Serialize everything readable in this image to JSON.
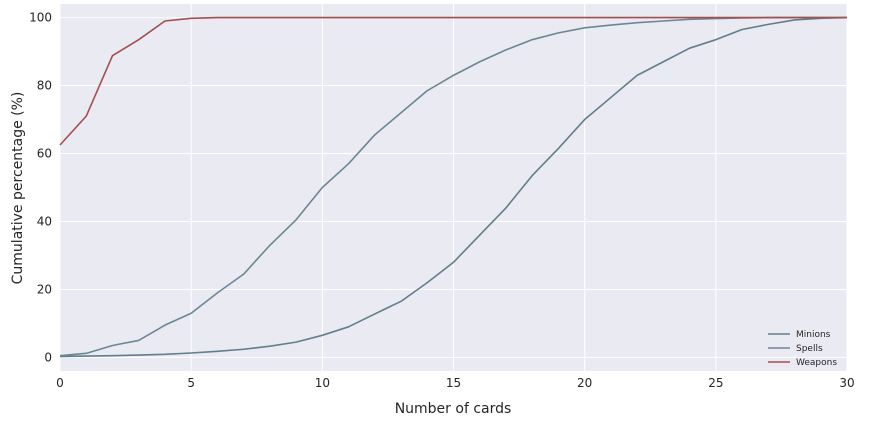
{
  "chart_data": {
    "type": "line",
    "title": "",
    "xlabel": "Number of cards",
    "ylabel": "Cumulative percentage (%)",
    "xlim": [
      0,
      30
    ],
    "ylim": [
      -4,
      104
    ],
    "xticks": [
      0,
      5,
      10,
      15,
      20,
      25,
      30
    ],
    "yticks": [
      0,
      20,
      40,
      60,
      80,
      100
    ],
    "grid": true,
    "legend_position": "lower-right",
    "background": "#eaeaf2",
    "x": [
      0,
      1,
      2,
      3,
      4,
      5,
      6,
      7,
      8,
      9,
      10,
      11,
      12,
      13,
      14,
      15,
      16,
      17,
      18,
      19,
      20,
      21,
      22,
      23,
      24,
      25,
      26,
      27,
      28,
      29,
      30
    ],
    "series": [
      {
        "name": "Minions",
        "color": "#5f7f8b",
        "values": [
          0.3,
          0.4,
          0.5,
          0.7,
          0.9,
          1.3,
          1.8,
          2.4,
          3.3,
          4.5,
          6.5,
          9.0,
          12.8,
          16.5,
          22.0,
          28.0,
          36.0,
          44.0,
          53.5,
          61.5,
          70.0,
          76.5,
          83.0,
          87.0,
          91.0,
          93.5,
          96.5,
          98.0,
          99.3,
          99.8,
          100.0
        ]
      },
      {
        "name": "Spells",
        "color": "#6a8894",
        "values": [
          0.5,
          1.2,
          3.5,
          5.0,
          9.5,
          13.0,
          19.0,
          24.5,
          33.0,
          40.5,
          50.0,
          57.0,
          65.5,
          72.0,
          78.5,
          83.0,
          87.0,
          90.5,
          93.5,
          95.5,
          97.0,
          97.8,
          98.5,
          99.0,
          99.5,
          99.7,
          99.9,
          100.0,
          100.0,
          100.0,
          100.0
        ]
      },
      {
        "name": "Weapons",
        "color": "#a54e4e",
        "values": [
          62.5,
          71.0,
          88.8,
          93.5,
          99.0,
          99.8,
          100.0,
          100.0,
          100.0,
          100.0,
          100.0,
          100.0,
          100.0,
          100.0,
          100.0,
          100.0,
          100.0,
          100.0,
          100.0,
          100.0,
          100.0,
          100.0,
          100.0,
          100.0,
          100.0,
          100.0,
          100.0,
          100.0,
          100.0,
          100.0,
          100.0
        ]
      }
    ]
  }
}
